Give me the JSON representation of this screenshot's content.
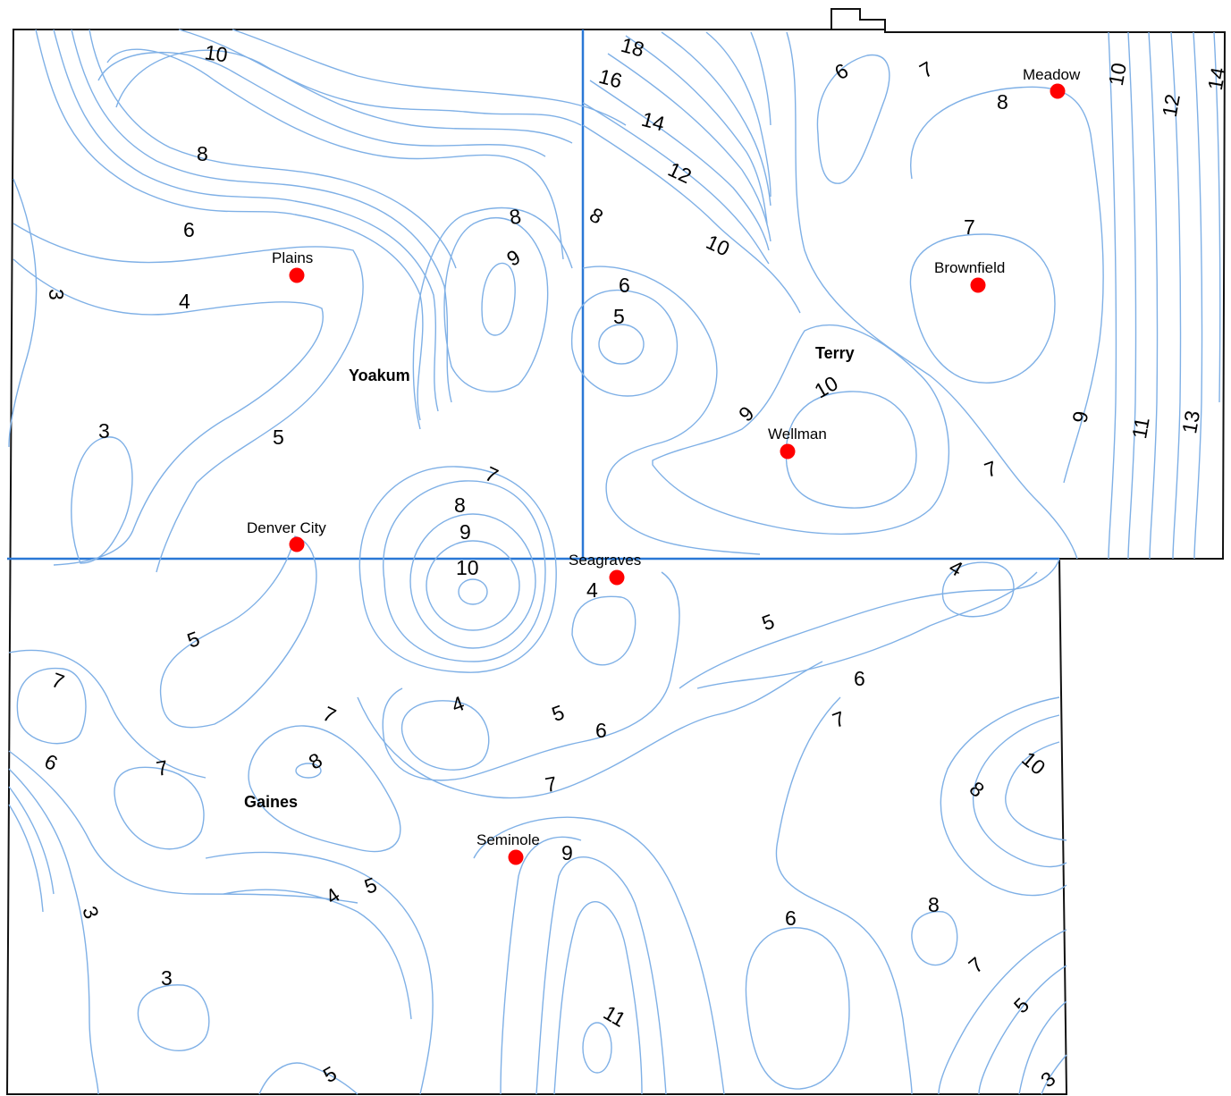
{
  "counties": [
    {
      "id": "yoakum",
      "name": "Yoakum"
    },
    {
      "id": "terry",
      "name": "Terry"
    },
    {
      "id": "gaines",
      "name": "Gaines"
    }
  ],
  "towns": [
    {
      "id": "plains",
      "name": "Plains"
    },
    {
      "id": "denver-city",
      "name": "Denver City"
    },
    {
      "id": "seagraves",
      "name": "Seagraves"
    },
    {
      "id": "seminole",
      "name": "Seminole"
    },
    {
      "id": "wellman",
      "name": "Wellman"
    },
    {
      "id": "brownfield",
      "name": "Brownfield"
    },
    {
      "id": "meadow",
      "name": "Meadow"
    }
  ],
  "contour_labels": [
    "10",
    "8",
    "6",
    "4",
    "3",
    "3",
    "5",
    "18",
    "16",
    "14",
    "12",
    "8",
    "10",
    "8",
    "9",
    "6",
    "5",
    "6",
    "7",
    "8",
    "10",
    "12",
    "14",
    "7",
    "10",
    "9",
    "9",
    "11",
    "13",
    "7",
    "7",
    "8",
    "9",
    "10",
    "4",
    "5",
    "4",
    "5",
    "6",
    "7",
    "7",
    "6",
    "7",
    "8",
    "5",
    "4",
    "7",
    "6",
    "5",
    "6",
    "7",
    "9",
    "11",
    "10",
    "8",
    "3",
    "4",
    "5",
    "3",
    "5",
    "6",
    "8",
    "7",
    "5",
    "3"
  ],
  "colors": {
    "contour": "#7fb0e6",
    "county_line": "#2a78d6",
    "town": "#ff0000"
  }
}
